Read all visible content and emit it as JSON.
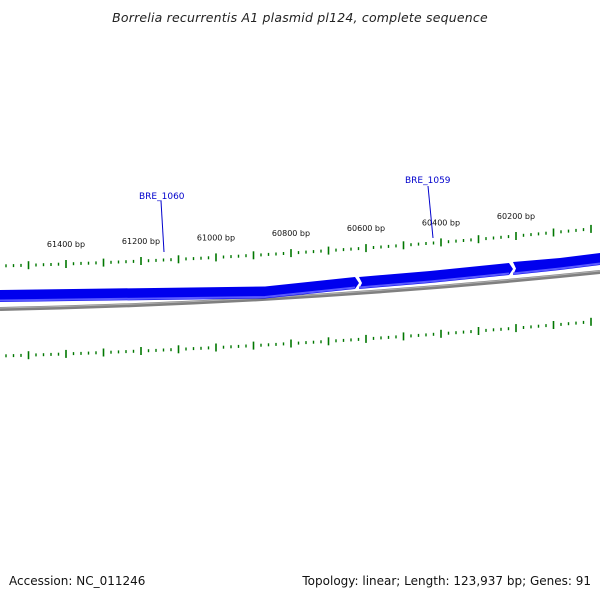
{
  "title": "Borrelia recurrentis A1 plasmid pl124, complete sequence",
  "footer": {
    "accession": "Accession: NC_011246",
    "summary": "Topology: linear; Length: 123,937 bp; Genes: 91"
  },
  "colors": {
    "gene_fill": "#0000ee",
    "gene_highlight": "#5a5aff",
    "backbone": "#808080",
    "tick": "#007700",
    "gene_label": "#0000cc",
    "text": "#111111"
  },
  "view": {
    "start_bp": 60000,
    "end_bp": 61600,
    "direction": "reversed"
  },
  "ruler_labels": [
    "61400 bp",
    "61200 bp",
    "61000 bp",
    "60800 bp",
    "60600 bp",
    "60400 bp",
    "60200 bp"
  ],
  "genes": [
    {
      "name": "BRE_1060",
      "strand": "reverse"
    },
    {
      "name": "BRE_1059",
      "strand": "reverse"
    },
    {
      "name": "",
      "strand": "reverse"
    }
  ]
}
